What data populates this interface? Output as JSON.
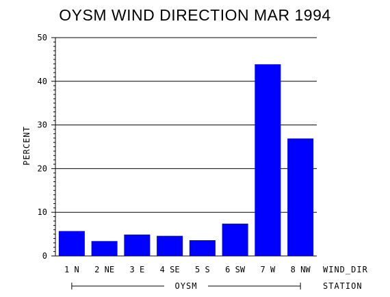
{
  "chart_data": {
    "type": "bar",
    "title": "OYSM WIND DIRECTION MAR 1994",
    "ylabel": "PERCENT",
    "xlabel": "WIND_DIR",
    "group_axis_label": "STATION",
    "group_label": "OYSM",
    "categories": [
      "1 N",
      "2 NE",
      "3 E",
      "4 SE",
      "5 S",
      "6 SW",
      "7 W",
      "8 NW"
    ],
    "values": [
      5.7,
      3.4,
      4.9,
      4.6,
      3.6,
      7.4,
      43.9,
      26.9
    ],
    "ylim": [
      0,
      50
    ],
    "yticks": [
      0,
      10,
      20,
      30,
      40,
      50
    ],
    "grid": true,
    "colors": {
      "bar": "#0000ff",
      "grid": "#000000",
      "axis": "#000000"
    }
  }
}
